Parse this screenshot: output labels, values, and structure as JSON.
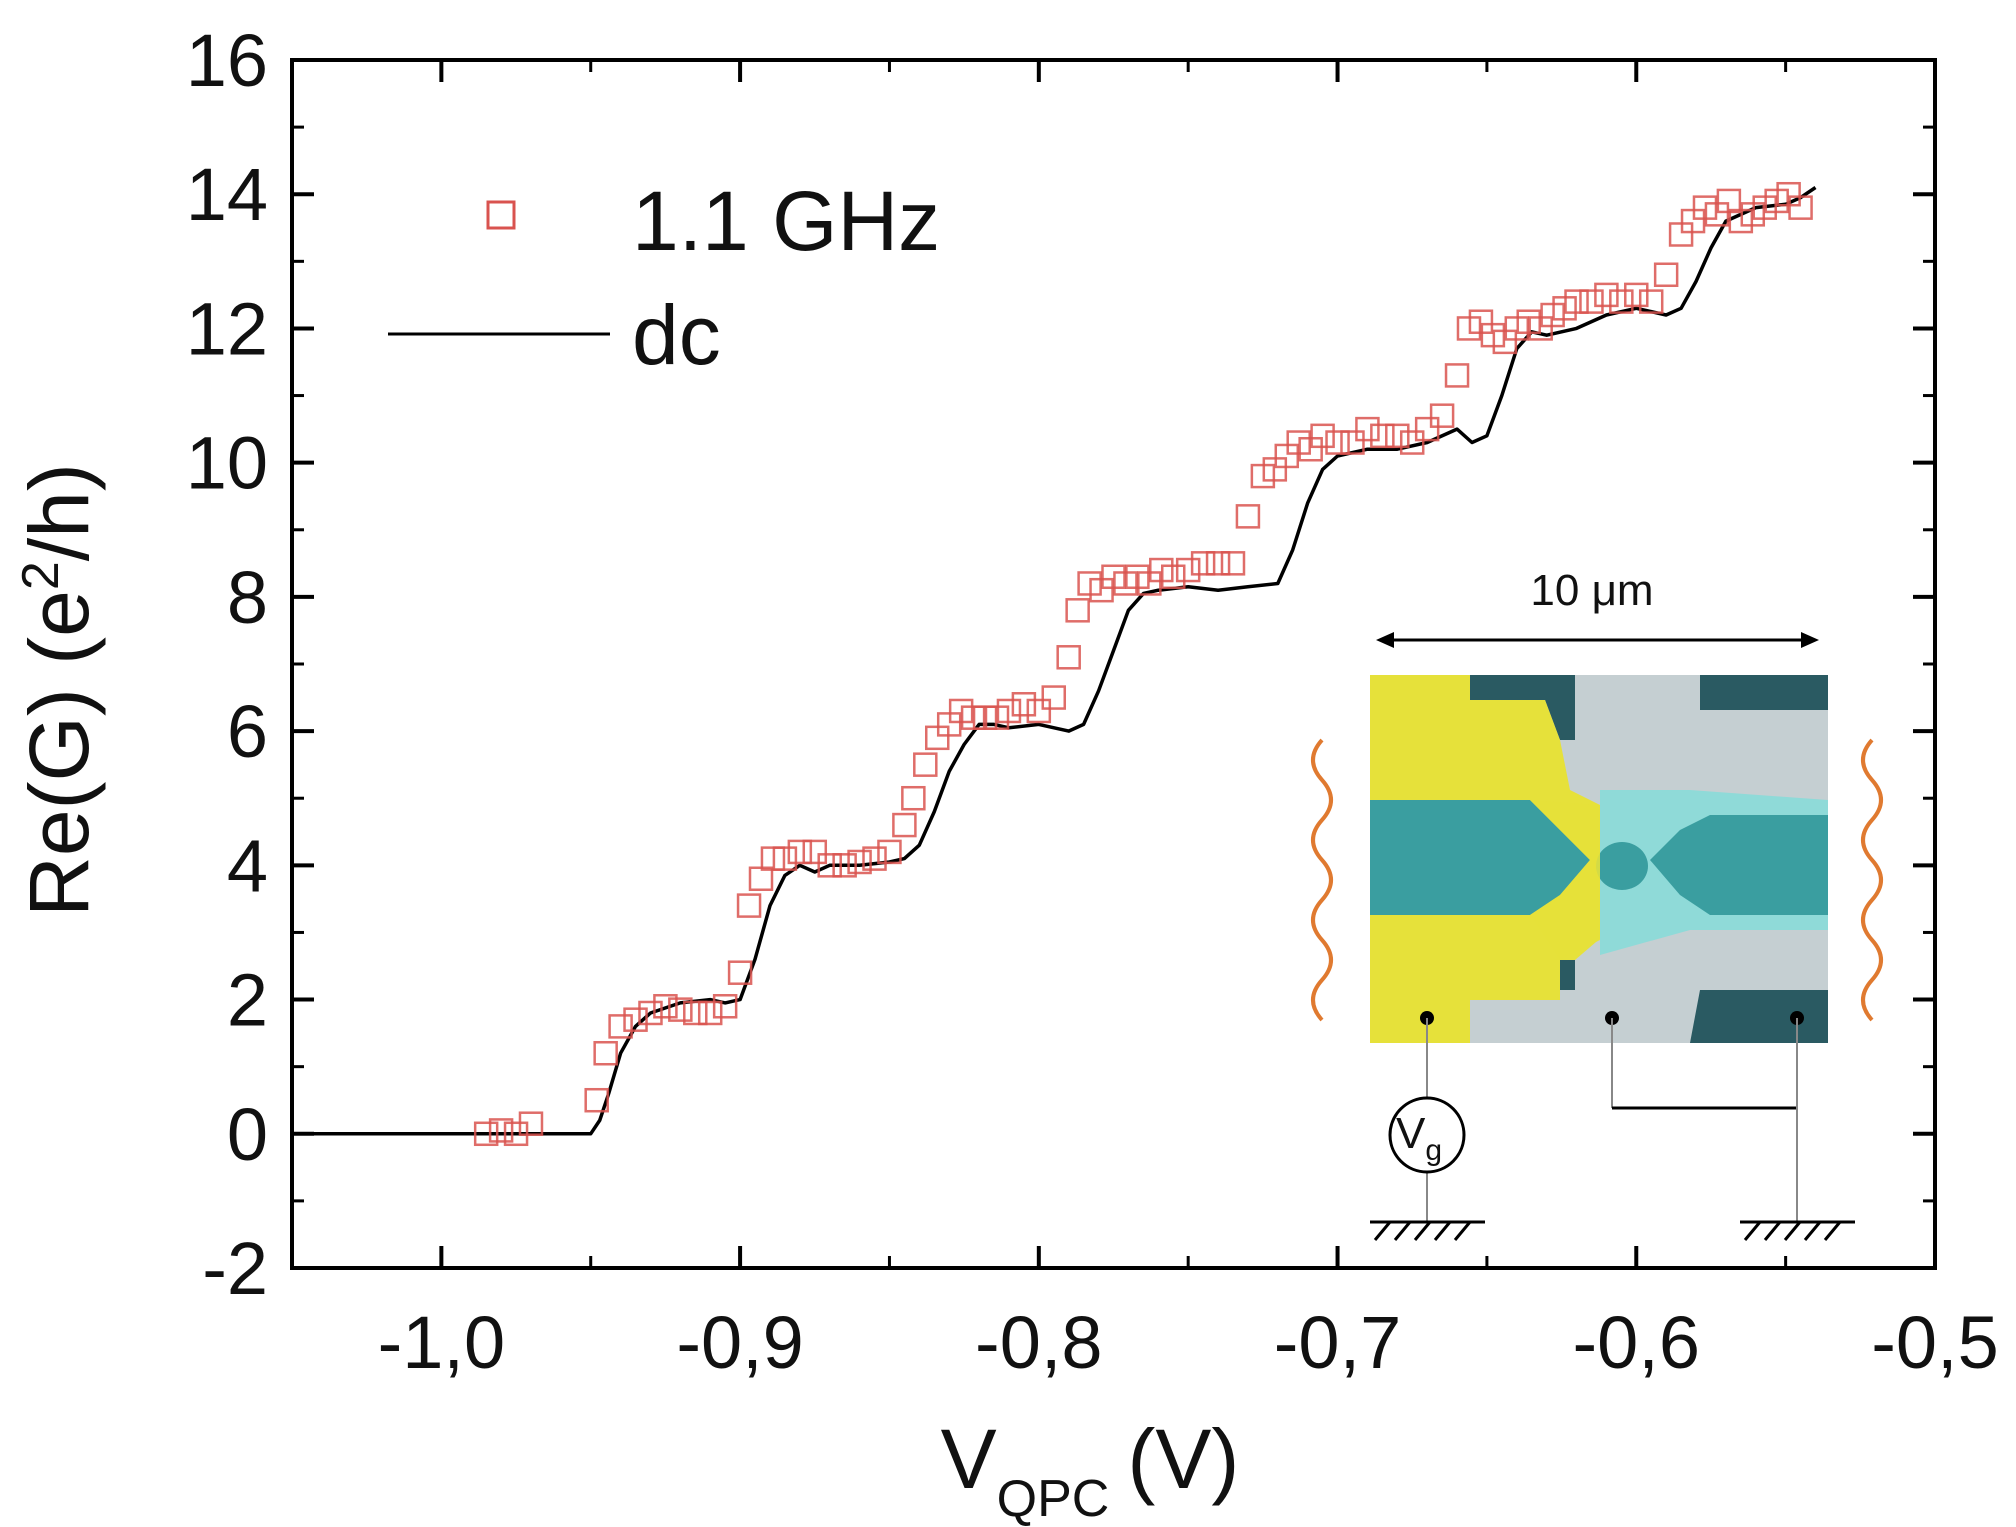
{
  "chart_data": {
    "type": "line",
    "xlabel_main": "V",
    "xlabel_sub": "QPC",
    "xlabel_unit": "(V)",
    "ylabel_main": "Re(G)  (e",
    "ylabel_sup": "2",
    "ylabel_tail": "/h)",
    "xlim": [
      -1.05,
      -0.5
    ],
    "ylim": [
      -2,
      16
    ],
    "xticks": [
      {
        "v": -1.0,
        "label": "-1,0"
      },
      {
        "v": -0.9,
        "label": "-0,9"
      },
      {
        "v": -0.8,
        "label": "-0,8"
      },
      {
        "v": -0.7,
        "label": "-0,7"
      },
      {
        "v": -0.6,
        "label": "-0,6"
      },
      {
        "v": -0.5,
        "label": "-0,5"
      }
    ],
    "yticks": [
      {
        "v": -2,
        "label": "-2"
      },
      {
        "v": 0,
        "label": "0"
      },
      {
        "v": 2,
        "label": "2"
      },
      {
        "v": 4,
        "label": "4"
      },
      {
        "v": 6,
        "label": "6"
      },
      {
        "v": 8,
        "label": "8"
      },
      {
        "v": 10,
        "label": "10"
      },
      {
        "v": 12,
        "label": "12"
      },
      {
        "v": 14,
        "label": "14"
      },
      {
        "v": 16,
        "label": "16"
      }
    ],
    "legend": [
      {
        "label": "1.1 GHz",
        "marker": "open-square",
        "color": "#d9534f"
      },
      {
        "label": "dc",
        "marker": "line",
        "color": "#000000"
      }
    ],
    "series": [
      {
        "name": "dc",
        "style": "line",
        "color": "#000000",
        "x": [
          -1.05,
          -0.95,
          -0.947,
          -0.944,
          -0.94,
          -0.935,
          -0.93,
          -0.92,
          -0.91,
          -0.905,
          -0.9,
          -0.895,
          -0.89,
          -0.885,
          -0.88,
          -0.875,
          -0.87,
          -0.86,
          -0.85,
          -0.845,
          -0.84,
          -0.835,
          -0.83,
          -0.825,
          -0.82,
          -0.815,
          -0.81,
          -0.8,
          -0.79,
          -0.785,
          -0.78,
          -0.775,
          -0.77,
          -0.765,
          -0.76,
          -0.75,
          -0.74,
          -0.73,
          -0.72,
          -0.715,
          -0.71,
          -0.705,
          -0.7,
          -0.69,
          -0.68,
          -0.67,
          -0.66,
          -0.655,
          -0.65,
          -0.645,
          -0.64,
          -0.635,
          -0.63,
          -0.62,
          -0.61,
          -0.6,
          -0.59,
          -0.585,
          -0.58,
          -0.575,
          -0.57,
          -0.56,
          -0.55,
          -0.545,
          -0.54
        ],
        "y": [
          0,
          0,
          0.2,
          0.6,
          1.2,
          1.6,
          1.8,
          1.95,
          2.0,
          1.95,
          2.0,
          2.6,
          3.4,
          3.85,
          4.0,
          3.9,
          4.0,
          4.0,
          4.05,
          4.1,
          4.3,
          4.8,
          5.4,
          5.8,
          6.1,
          6.1,
          6.05,
          6.1,
          6.0,
          6.1,
          6.6,
          7.2,
          7.8,
          8.05,
          8.1,
          8.15,
          8.1,
          8.15,
          8.2,
          8.7,
          9.4,
          9.9,
          10.1,
          10.2,
          10.2,
          10.3,
          10.5,
          10.3,
          10.4,
          11.0,
          11.7,
          11.95,
          11.9,
          12.0,
          12.2,
          12.3,
          12.2,
          12.3,
          12.7,
          13.2,
          13.6,
          13.8,
          13.85,
          13.95,
          14.1
        ]
      },
      {
        "name": "1.1 GHz",
        "style": "open-square",
        "color": "#d9534f",
        "x": [
          -0.985,
          -0.98,
          -0.975,
          -0.97,
          -0.948,
          -0.945,
          -0.94,
          -0.935,
          -0.93,
          -0.925,
          -0.92,
          -0.915,
          -0.91,
          -0.905,
          -0.9,
          -0.897,
          -0.893,
          -0.889,
          -0.885,
          -0.88,
          -0.875,
          -0.87,
          -0.865,
          -0.86,
          -0.855,
          -0.85,
          -0.845,
          -0.842,
          -0.838,
          -0.834,
          -0.83,
          -0.826,
          -0.822,
          -0.818,
          -0.814,
          -0.81,
          -0.805,
          -0.8,
          -0.795,
          -0.79,
          -0.787,
          -0.783,
          -0.779,
          -0.775,
          -0.771,
          -0.767,
          -0.763,
          -0.759,
          -0.755,
          -0.75,
          -0.745,
          -0.74,
          -0.735,
          -0.73,
          -0.725,
          -0.721,
          -0.717,
          -0.713,
          -0.709,
          -0.705,
          -0.7,
          -0.695,
          -0.69,
          -0.685,
          -0.68,
          -0.675,
          -0.67,
          -0.665,
          -0.66,
          -0.656,
          -0.652,
          -0.648,
          -0.644,
          -0.64,
          -0.636,
          -0.632,
          -0.628,
          -0.624,
          -0.62,
          -0.615,
          -0.61,
          -0.605,
          -0.6,
          -0.595,
          -0.59,
          -0.585,
          -0.581,
          -0.577,
          -0.573,
          -0.569,
          -0.565,
          -0.561,
          -0.557,
          -0.553,
          -0.549,
          -0.545
        ],
        "y": [
          0.0,
          0.05,
          0.0,
          0.15,
          0.5,
          1.2,
          1.6,
          1.7,
          1.8,
          1.9,
          1.85,
          1.8,
          1.8,
          1.9,
          2.4,
          3.4,
          3.8,
          4.1,
          4.1,
          4.2,
          4.2,
          4.0,
          4.0,
          4.05,
          4.1,
          4.2,
          4.6,
          5.0,
          5.5,
          5.9,
          6.1,
          6.3,
          6.2,
          6.2,
          6.2,
          6.3,
          6.4,
          6.3,
          6.5,
          7.1,
          7.8,
          8.2,
          8.1,
          8.3,
          8.2,
          8.3,
          8.2,
          8.4,
          8.3,
          8.4,
          8.5,
          8.5,
          8.5,
          9.2,
          9.8,
          9.9,
          10.1,
          10.3,
          10.2,
          10.4,
          10.3,
          10.3,
          10.5,
          10.4,
          10.4,
          10.3,
          10.5,
          10.7,
          11.3,
          12.0,
          12.1,
          11.9,
          11.8,
          12.0,
          12.1,
          12.0,
          12.2,
          12.3,
          12.4,
          12.4,
          12.5,
          12.4,
          12.5,
          12.4,
          12.8,
          13.4,
          13.6,
          13.8,
          13.7,
          13.9,
          13.6,
          13.7,
          13.8,
          13.9,
          14.0,
          13.8
        ]
      }
    ],
    "grid": false
  },
  "inset": {
    "scale_label": "10 μm",
    "vg_label_main": "V",
    "vg_label_sub": "g",
    "colors": {
      "yellow": "#e6e13a",
      "teal": "#3a9ea0",
      "dark": "#2a5a62",
      "light_gray": "#c5cfd2",
      "light_cyan": "#8fdad8",
      "wave": "#e07a30"
    }
  }
}
